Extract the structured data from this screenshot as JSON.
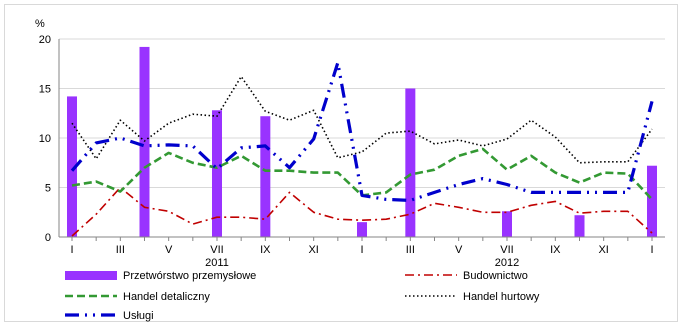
{
  "chart_data": {
    "type": "bar",
    "ylabel": "%",
    "ylim": [
      0,
      20
    ],
    "yticks": [
      0,
      5,
      10,
      15,
      20
    ],
    "x": [
      "2011-01",
      "2011-02",
      "2011-03",
      "2011-04",
      "2011-05",
      "2011-06",
      "2011-07",
      "2011-08",
      "2011-09",
      "2011-10",
      "2011-11",
      "2011-12",
      "2012-01",
      "2012-02",
      "2012-03",
      "2012-04",
      "2012-05",
      "2012-06",
      "2012-07",
      "2012-08",
      "2012-09",
      "2012-10",
      "2012-11",
      "2012-12",
      "2013-01"
    ],
    "tick_labels": [
      "I",
      "",
      "III",
      "",
      "V",
      "",
      "VII",
      "",
      "IX",
      "",
      "XI",
      "",
      "I",
      "",
      "III",
      "",
      "V",
      "",
      "VII",
      "",
      "IX",
      "",
      "XI",
      "",
      "I"
    ],
    "year_labels": [
      {
        "label": "2011",
        "at": "2011-07"
      },
      {
        "label": "2012",
        "at": "2012-07"
      }
    ],
    "grid": "horizontal",
    "legend_position": "bottom",
    "series": [
      {
        "name": "Przetwórstwo przemysłowe",
        "type": "bar",
        "color": "#9933ff",
        "values": [
          14.2,
          null,
          null,
          19.2,
          null,
          null,
          12.8,
          null,
          12.2,
          null,
          null,
          null,
          1.5,
          null,
          15.0,
          null,
          null,
          null,
          2.6,
          null,
          null,
          2.2,
          null,
          null,
          7.2
        ]
      },
      {
        "name": "Budownictwo",
        "type": "line",
        "style": "dash-dot",
        "color": "#c00000",
        "values": [
          0.1,
          2.3,
          5.0,
          3.0,
          2.6,
          1.3,
          2.0,
          2.0,
          1.8,
          4.5,
          2.5,
          1.8,
          1.7,
          1.8,
          2.3,
          3.4,
          3.0,
          2.5,
          2.5,
          3.2,
          3.6,
          2.4,
          2.6,
          2.6,
          0.4
        ]
      },
      {
        "name": "Handel detaliczny",
        "type": "line",
        "style": "dashed",
        "color": "#339933",
        "values": [
          5.2,
          5.6,
          4.6,
          7.0,
          8.5,
          7.5,
          7.0,
          8.2,
          6.7,
          6.7,
          6.5,
          6.5,
          4.2,
          4.5,
          6.3,
          6.8,
          8.2,
          8.9,
          6.8,
          8.2,
          6.5,
          5.5,
          6.5,
          6.4,
          3.8
        ]
      },
      {
        "name": "Handel hurtowy",
        "type": "line",
        "style": "dotted",
        "color": "#000000",
        "values": [
          11.5,
          7.9,
          11.8,
          9.7,
          11.5,
          12.4,
          12.2,
          16.2,
          12.7,
          11.8,
          12.8,
          8.0,
          8.6,
          10.5,
          10.7,
          9.4,
          9.8,
          9.2,
          9.9,
          11.8,
          10.1,
          7.5,
          7.6,
          7.6,
          10.9
        ]
      },
      {
        "name": "Usługi",
        "type": "line",
        "style": "dash-dot-dot",
        "color": "#0000cc",
        "values": [
          6.7,
          9.5,
          10.0,
          9.2,
          9.3,
          9.2,
          6.9,
          9.0,
          9.2,
          7.0,
          9.9,
          17.6,
          4.2,
          3.8,
          3.7,
          4.5,
          5.3,
          5.9,
          5.3,
          4.5,
          4.5,
          4.5,
          4.5,
          4.5,
          13.7
        ]
      }
    ]
  }
}
